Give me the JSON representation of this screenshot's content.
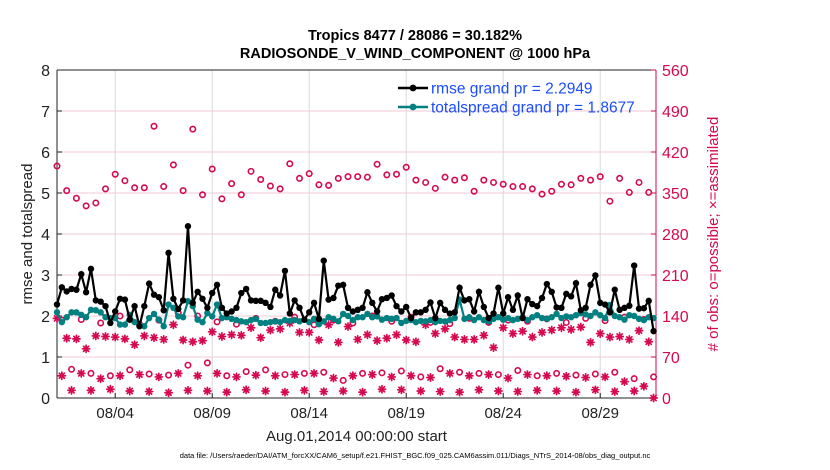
{
  "chart_data": {
    "type": "line",
    "title": [
      "Tropics 8477 / 28086 = 30.182%",
      "RADIOSONDE_V_WIND_COMPONENT @ 1000 hPa"
    ],
    "xlabel": "Aug.01,2014 00:00:00 start",
    "ylabel": "rmse and totalspread",
    "ylabel_right": "# of obs: o=possible; ×=assimilated",
    "footer": "data file: /Users/raeder/DAI/ATM_forcXX/CAM6_setup/f.e21.FHIST_BGC.f09_025.CAM6assim.011/Diags_NTrS_2014-08/obs_diag_output.nc",
    "x_start": "2014-08-01 00:00",
    "x_step_hours": 6,
    "xlim": [
      "2014-08-01 00:00",
      "2014-08-31 21:00"
    ],
    "xticks": [
      {
        "date": "2014-08-04",
        "label": "08/04"
      },
      {
        "date": "2014-08-09",
        "label": "08/09"
      },
      {
        "date": "2014-08-14",
        "label": "08/14"
      },
      {
        "date": "2014-08-19",
        "label": "08/19"
      },
      {
        "date": "2014-08-24",
        "label": "08/24"
      },
      {
        "date": "2014-08-29",
        "label": "08/29"
      }
    ],
    "ylim": [
      0,
      8
    ],
    "yticks": [
      "0",
      "1",
      "2",
      "3",
      "4",
      "5",
      "6",
      "7",
      "8"
    ],
    "ylim_right": [
      0,
      560
    ],
    "yticks_right": [
      "0",
      "70",
      "140",
      "210",
      "280",
      "350",
      "420",
      "490",
      "560"
    ],
    "grid": "on",
    "legend_position": "top-right",
    "colors": {
      "rmse": "#000000",
      "totalspread": "#008080",
      "obs": "#d6084f",
      "legend_text": "#1a4dff",
      "right_axis": "#d6084f"
    },
    "series": [
      {
        "name": "rmse grand pr = 2.2949",
        "axis": "left",
        "marker": "filled-circle",
        "values": [
          2.28,
          2.7,
          2.6,
          2.66,
          2.64,
          3.02,
          2.58,
          3.15,
          2.38,
          2.35,
          2.24,
          1.83,
          2.11,
          2.42,
          2.4,
          1.91,
          2.24,
          1.75,
          2.24,
          2.79,
          2.52,
          2.46,
          2.14,
          3.54,
          2.42,
          2.17,
          2.38,
          4.19,
          2.32,
          2.59,
          2.42,
          2.2,
          2.56,
          2.76,
          2.2,
          2.06,
          2.11,
          2.2,
          2.56,
          2.66,
          2.38,
          2.37,
          2.37,
          2.32,
          2.22,
          2.64,
          2.5,
          3.1,
          2.06,
          2.38,
          2.2,
          1.91,
          2.09,
          2.32,
          1.93,
          3.35,
          2.4,
          2.44,
          2.74,
          2.76,
          2.2,
          2.11,
          2.15,
          2.2,
          2.58,
          2.32,
          2.11,
          2.41,
          2.44,
          2.5,
          2.24,
          2.11,
          2.22,
          1.95,
          2.09,
          2.09,
          2.15,
          2.33,
          1.95,
          2.32,
          2.15,
          2.06,
          2.09,
          2.69,
          2.38,
          2.41,
          2.11,
          2.59,
          2.22,
          1.95,
          2.06,
          2.69,
          2.06,
          2.46,
          2.15,
          2.5,
          1.95,
          2.41,
          2.29,
          2.24,
          2.44,
          2.78,
          2.59,
          2.21,
          2.2,
          2.54,
          2.48,
          2.8,
          2.14,
          2.2,
          2.76,
          2.99,
          2.32,
          2.28,
          2.09,
          2.64,
          2.15,
          2.2,
          2.25,
          3.23,
          2.18,
          2.19,
          2.37,
          1.63
        ]
      },
      {
        "name": "totalspread grand pr = 1.8677",
        "axis": "left",
        "marker": "filled-circle",
        "values": [
          2.09,
          1.85,
          1.97,
          2.09,
          2.09,
          2.03,
          1.97,
          2.15,
          2.14,
          2.09,
          1.97,
          1.95,
          1.95,
          1.79,
          1.79,
          2.03,
          1.85,
          1.79,
          1.75,
          1.95,
          2.05,
          1.91,
          1.75,
          2.28,
          2.2,
          1.99,
          1.97,
          2.36,
          2.24,
          1.91,
          1.85,
          2.07,
          1.99,
          2.28,
          1.95,
          1.97,
          1.93,
          1.9,
          1.87,
          1.85,
          1.9,
          1.93,
          1.83,
          1.83,
          1.85,
          1.87,
          1.85,
          1.9,
          1.88,
          1.9,
          1.87,
          1.91,
          1.85,
          1.93,
          1.8,
          1.87,
          1.97,
          1.93,
          1.87,
          2.05,
          2.0,
          1.9,
          1.97,
          1.97,
          2.05,
          1.97,
          1.99,
          1.91,
          1.95,
          1.93,
          1.95,
          1.83,
          1.88,
          1.9,
          1.85,
          1.88,
          1.87,
          1.9,
          1.85,
          1.88,
          1.87,
          1.9,
          1.95,
          2.4,
          1.93,
          1.97,
          1.9,
          1.97,
          1.9,
          1.87,
          1.93,
          1.97,
          1.91,
          1.95,
          1.9,
          1.93,
          1.97,
          1.9,
          1.97,
          2.02,
          1.95,
          1.93,
          1.97,
          2.05,
          1.95,
          1.99,
          1.97,
          2.02,
          2.07,
          2.04,
          2.0,
          2.09,
          2.02,
          1.95,
          2.27,
          2.0,
          1.97,
          1.91,
          2.02,
          2.0,
          1.93,
          1.9,
          1.97,
          1.95
        ]
      },
      {
        "name": "possible",
        "axis": "right",
        "marker": "open-circle",
        "by_hour": {
          "00Z": [
            396,
            341,
            333,
            382,
            359,
            464,
            398,
            459,
            391,
            366,
            387,
            362,
            400,
            383,
            363,
            378,
            377,
            381,
            394,
            368,
            377,
            376,
            372,
            365,
            361,
            348,
            365,
            375,
            378,
            375,
            368
          ],
          "06Z": [
            133,
            134,
            128,
            140,
            126,
            133,
            145,
            140,
            130,
            126,
            136,
            131,
            138,
            125,
            133,
            128,
            140,
            131,
            138,
            129,
            127,
            136,
            129,
            133,
            131,
            135,
            129,
            136,
            132,
            138,
            134
          ],
          "12Z": [
            354,
            328,
            357,
            371,
            359,
            361,
            354,
            347,
            340,
            347,
            373,
            357,
            375,
            364,
            375,
            378,
            399,
            382,
            372,
            358,
            372,
            353,
            368,
            361,
            357,
            353,
            364,
            372,
            336,
            351,
            351
          ],
          "18Z": [
            49,
            42,
            38,
            48,
            41,
            39,
            56,
            60,
            38,
            45,
            48,
            40,
            42,
            44,
            30,
            42,
            43,
            46,
            36,
            50,
            44,
            42,
            40,
            47,
            38,
            42,
            39,
            41,
            44,
            33,
            36
          ]
        }
      },
      {
        "name": "assimilated",
        "axis": "right",
        "marker": "asterisk",
        "by_hour": {
          "00Z": [
            136,
            101,
            106,
            104,
            91,
            103,
            125,
            96,
            113,
            108,
            120,
            116,
            128,
            112,
            125,
            122,
            108,
            102,
            99,
            125,
            118,
            100,
            107,
            120,
            114,
            112,
            120,
            121,
            110,
            105,
            115
          ],
          "06Z": [
            38,
            42,
            33,
            38,
            40,
            36,
            42,
            38,
            42,
            36,
            39,
            38,
            40,
            42,
            34,
            38,
            40,
            36,
            38,
            35,
            42,
            38,
            40,
            34,
            40,
            38,
            37,
            35,
            36,
            28,
            20
          ],
          "12Z": [
            102,
            84,
            105,
            101,
            106,
            100,
            99,
            98,
            105,
            107,
            103,
            118,
            112,
            99,
            95,
            100,
            98,
            108,
            96,
            110,
            104,
            100,
            86,
            110,
            104,
            116,
            117,
            95,
            104,
            100,
            96
          ],
          "18Z": [
            13,
            13,
            15,
            12,
            11,
            9,
            13,
            12,
            10,
            14,
            12,
            10,
            13,
            11,
            12,
            10,
            15,
            14,
            12,
            11,
            10,
            14,
            12,
            11,
            13,
            12,
            10,
            14,
            11,
            12,
            0
          ]
        }
      }
    ]
  }
}
